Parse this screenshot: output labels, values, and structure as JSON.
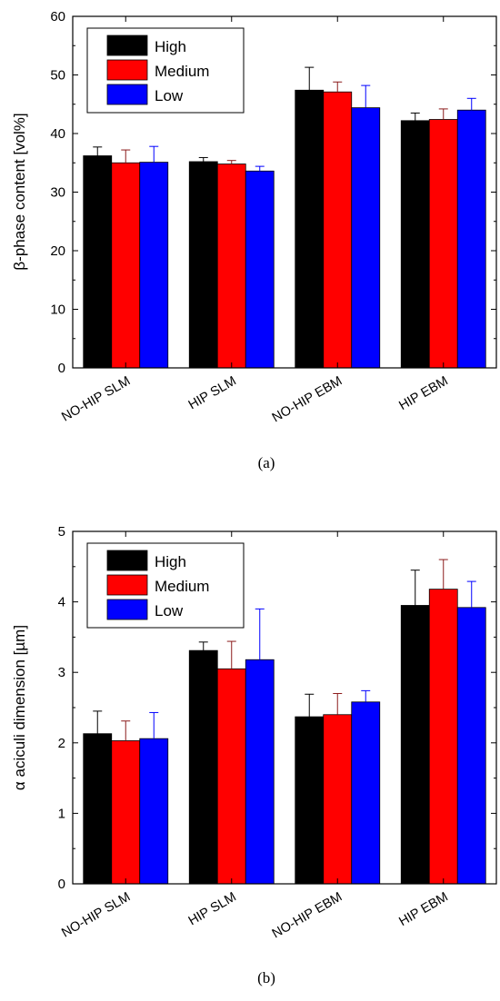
{
  "chart_data": [
    {
      "type": "bar",
      "title": "",
      "xlabel": "",
      "ylabel": "β-phase content [vol%]",
      "ylim": [
        0,
        60
      ],
      "yticks": [
        0,
        10,
        20,
        30,
        40,
        50,
        60
      ],
      "categories": [
        "NO-HIP SLM",
        "HIP SLM",
        "NO-HIP EBM",
        "HIP EBM"
      ],
      "series": [
        {
          "name": "High",
          "color": "#000000",
          "values": [
            36.2,
            35.2,
            47.4,
            42.2
          ],
          "errors": [
            1.5,
            0.7,
            3.9,
            1.3
          ]
        },
        {
          "name": "Medium",
          "color": "#ff0000",
          "values": [
            35.0,
            34.8,
            47.1,
            42.4
          ],
          "errors": [
            2.2,
            0.6,
            1.7,
            1.8
          ]
        },
        {
          "name": "Low",
          "color": "#0000ff",
          "values": [
            35.1,
            33.6,
            44.4,
            44.0
          ],
          "errors": [
            2.7,
            0.8,
            3.8,
            2.0
          ]
        }
      ],
      "legend_position": "top-left",
      "grid": false,
      "caption": "(a)"
    },
    {
      "type": "bar",
      "title": "",
      "xlabel": "",
      "ylabel": "α aciculi dimension [µm]",
      "ylim": [
        0,
        5
      ],
      "yticks": [
        0,
        1,
        2,
        3,
        4,
        5
      ],
      "categories": [
        "NO-HIP SLM",
        "HIP SLM",
        "NO-HIP EBM",
        "HIP EBM"
      ],
      "series": [
        {
          "name": "High",
          "color": "#000000",
          "values": [
            2.13,
            3.31,
            2.37,
            3.95
          ],
          "errors": [
            0.32,
            0.12,
            0.32,
            0.5
          ]
        },
        {
          "name": "Medium",
          "color": "#ff0000",
          "values": [
            2.03,
            3.05,
            2.4,
            4.18
          ],
          "errors": [
            0.28,
            0.39,
            0.3,
            0.42
          ]
        },
        {
          "name": "Low",
          "color": "#0000ff",
          "values": [
            2.06,
            3.18,
            2.58,
            3.92
          ],
          "errors": [
            0.37,
            0.72,
            0.16,
            0.37
          ]
        }
      ],
      "legend_position": "top-left",
      "grid": false,
      "caption": "(b)"
    }
  ]
}
